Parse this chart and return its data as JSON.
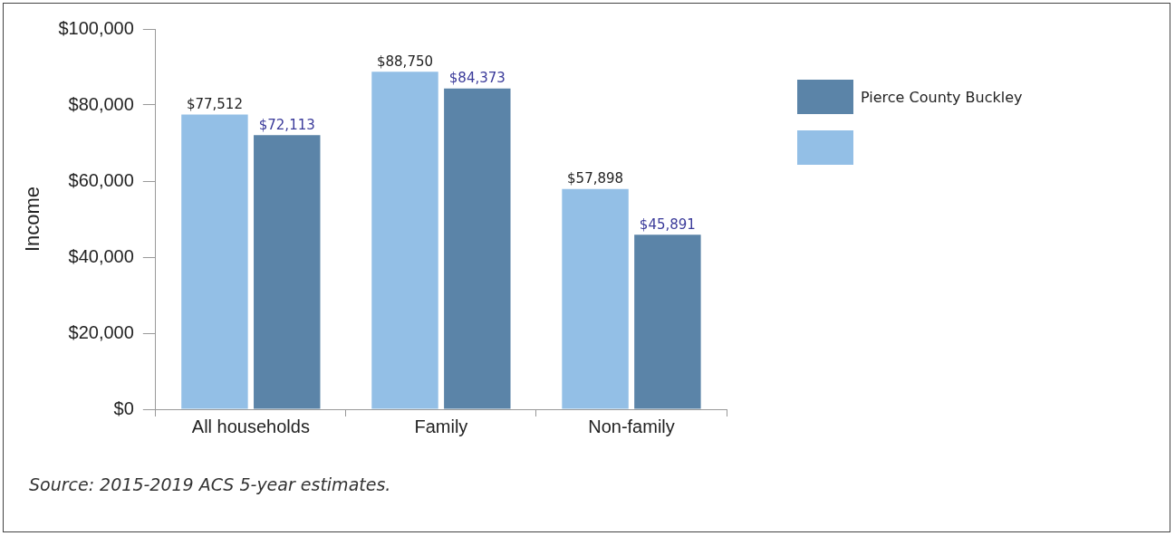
{
  "chart_data": {
    "type": "bar",
    "categories": [
      "All households",
      "Family",
      "Non-family"
    ],
    "series": [
      {
        "color": "#93bfe6",
        "values": [
          77512,
          88750,
          57898
        ],
        "value_labels": [
          "$77,512",
          "$88,750",
          "$57,898"
        ]
      },
      {
        "name": "Pierce County Buckley",
        "color": "#5b84a8",
        "values": [
          72113,
          84373,
          45891
        ],
        "value_labels": [
          "$72,113",
          "$84,373",
          "$45,891"
        ]
      }
    ],
    "ylabel": "Income",
    "ylim": [
      0,
      100000
    ],
    "yticks": [
      {
        "value": 0,
        "label": "$0"
      },
      {
        "value": 20000,
        "label": "$20,000"
      },
      {
        "value": 40000,
        "label": "$40,000"
      },
      {
        "value": 60000,
        "label": "$60,000"
      },
      {
        "value": 80000,
        "label": "$80,000"
      },
      {
        "value": 100000,
        "label": "$100,000"
      }
    ],
    "grid": false,
    "legend": "top right",
    "annotations": [
      "Source: 2015-2019 ACS 5-year estimates."
    ]
  }
}
